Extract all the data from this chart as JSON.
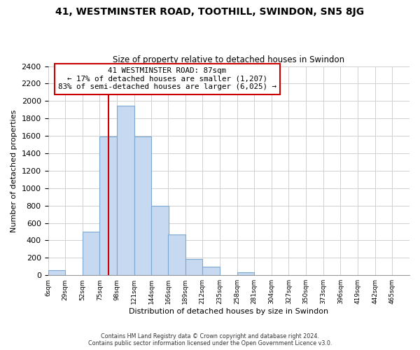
{
  "title": "41, WESTMINSTER ROAD, TOOTHILL, SWINDON, SN5 8JG",
  "subtitle": "Size of property relative to detached houses in Swindon",
  "xlabel": "Distribution of detached houses by size in Swindon",
  "ylabel": "Number of detached properties",
  "bar_color": "#c6d9f1",
  "bar_edge_color": "#7ba7d0",
  "categories": [
    "6sqm",
    "29sqm",
    "52sqm",
    "75sqm",
    "98sqm",
    "121sqm",
    "144sqm",
    "166sqm",
    "189sqm",
    "212sqm",
    "235sqm",
    "258sqm",
    "281sqm",
    "304sqm",
    "327sqm",
    "350sqm",
    "373sqm",
    "396sqm",
    "419sqm",
    "442sqm",
    "465sqm"
  ],
  "values": [
    55,
    0,
    500,
    1590,
    1950,
    1590,
    800,
    470,
    185,
    95,
    0,
    35,
    0,
    0,
    0,
    0,
    0,
    0,
    0,
    0,
    0
  ],
  "ylim": [
    0,
    2400
  ],
  "yticks": [
    0,
    200,
    400,
    600,
    800,
    1000,
    1200,
    1400,
    1600,
    1800,
    2000,
    2200,
    2400
  ],
  "property_line_x": 87,
  "annotation_line1": "41 WESTMINSTER ROAD: 87sqm",
  "annotation_line2": "← 17% of detached houses are smaller (1,207)",
  "annotation_line3": "83% of semi-detached houses are larger (6,025) →",
  "annotation_box_color": "#ffffff",
  "annotation_box_edge": "#cc0000",
  "property_line_color": "#cc0000",
  "footer_line1": "Contains HM Land Registry data © Crown copyright and database right 2024.",
  "footer_line2": "Contains public sector information licensed under the Open Government Licence v3.0.",
  "background_color": "#ffffff",
  "grid_color": "#d0d0d0"
}
